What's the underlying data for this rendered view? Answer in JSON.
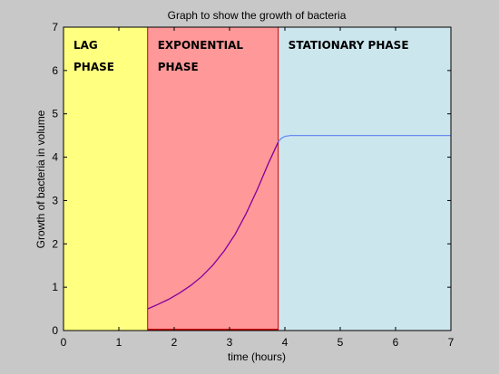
{
  "chart_data": {
    "type": "area",
    "title": "Graph to show the growth of bacteria",
    "xlabel": "time (hours)",
    "ylabel": "Growth of bacteria in volume",
    "xlim": [
      0,
      7
    ],
    "ylim": [
      0,
      7
    ],
    "xticks": [
      0,
      1,
      2,
      3,
      4,
      5,
      6,
      7
    ],
    "yticks": [
      0,
      1,
      2,
      3,
      4,
      5,
      6,
      7
    ],
    "grid": false,
    "phases": [
      {
        "label_lines": [
          "LAG",
          "PHASE"
        ],
        "x_start": 0,
        "x_end": 1.52,
        "color": "#ffff80"
      },
      {
        "label_lines": [
          "EXPONENTIAL",
          "PHASE"
        ],
        "x_start": 1.52,
        "x_end": 3.88,
        "color": "#ff9898"
      },
      {
        "label_lines": [
          "STATIONARY PHASE"
        ],
        "x_start": 3.88,
        "x_end": 7,
        "color": "#cce6ee"
      }
    ],
    "boundary_color": "#cc0000",
    "series": [
      {
        "color": "#8000a0",
        "x": [
          1.52,
          1.7,
          1.9,
          2.1,
          2.3,
          2.5,
          2.7,
          2.9,
          3.1,
          3.3,
          3.5,
          3.7,
          3.88
        ],
        "y": [
          0.5,
          0.6,
          0.72,
          0.87,
          1.04,
          1.25,
          1.51,
          1.83,
          2.22,
          2.7,
          3.25,
          3.85,
          4.35
        ]
      },
      {
        "color": "#6a8cf0",
        "x": [
          3.88,
          3.93,
          4.0,
          4.1,
          4.3,
          5,
          6,
          7
        ],
        "y": [
          4.35,
          4.43,
          4.48,
          4.5,
          4.5,
          4.5,
          4.5,
          4.5
        ]
      }
    ]
  }
}
